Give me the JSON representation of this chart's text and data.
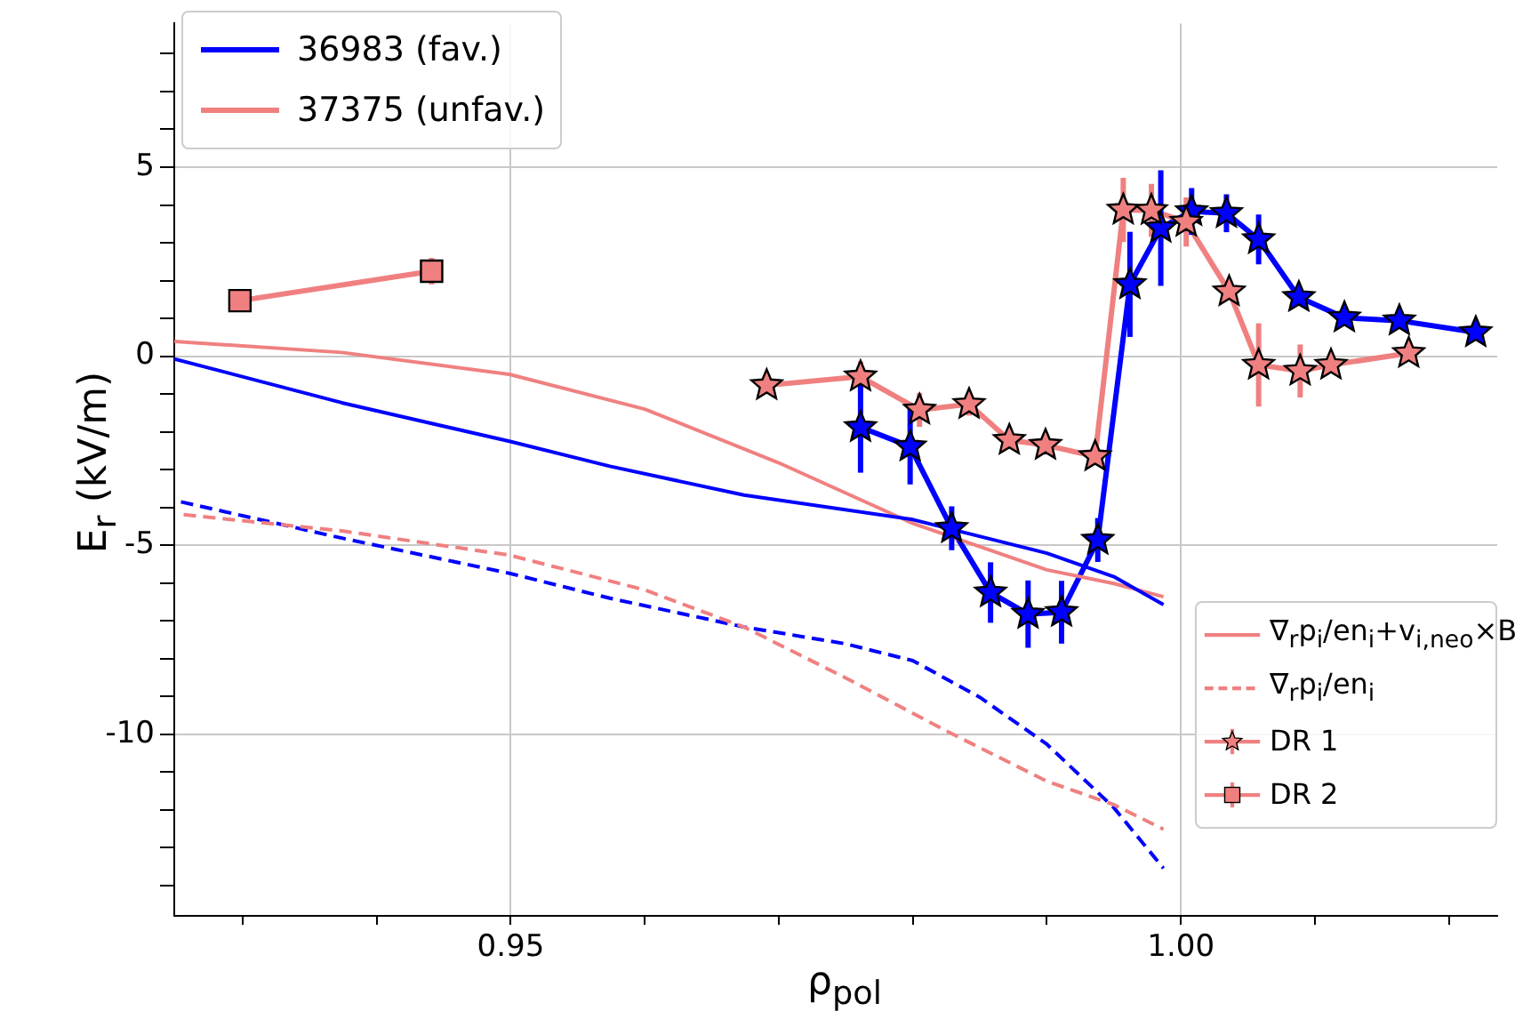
{
  "chart_data": {
    "type": "line",
    "xlabel": "ρ$_{pol}$",
    "ylabel": "E$_{r}$ (kV/m)",
    "xlim": [
      0.9249,
      1.0236
    ],
    "ylim": [
      -14.8,
      8.8
    ],
    "xticks": [
      {
        "value": 0.93,
        "label": null
      },
      {
        "value": 0.94,
        "label": null
      },
      {
        "value": 0.95,
        "label": "0.95"
      },
      {
        "value": 0.96,
        "label": null
      },
      {
        "value": 0.97,
        "label": null
      },
      {
        "value": 0.98,
        "label": null
      },
      {
        "value": 0.99,
        "label": null
      },
      {
        "value": 1.0,
        "label": "1.00"
      },
      {
        "value": 1.01,
        "label": null
      },
      {
        "value": 1.02,
        "label": null
      }
    ],
    "yticks": [
      {
        "value": -14,
        "label": null
      },
      {
        "value": -13,
        "label": null
      },
      {
        "value": -12,
        "label": null
      },
      {
        "value": -11,
        "label": null
      },
      -10,
      {
        "value": -9,
        "label": null
      },
      {
        "value": -8,
        "label": null
      },
      {
        "value": -7,
        "label": null
      },
      {
        "value": -6,
        "label": null
      },
      -5,
      {
        "value": -4,
        "label": null
      },
      {
        "value": -3,
        "label": null
      },
      {
        "value": -2,
        "label": null
      },
      {
        "value": -1,
        "label": null
      },
      0,
      {
        "value": 1,
        "label": null
      },
      {
        "value": 2,
        "label": null
      },
      {
        "value": 3,
        "label": null
      },
      {
        "value": 4,
        "label": null
      },
      5,
      {
        "value": 6,
        "label": null
      },
      {
        "value": 7,
        "label": null
      },
      {
        "value": 8,
        "label": null
      }
    ],
    "grid": true,
    "legend": "top left",
    "annotations": [
      "37375 (unfav.)"
    ],
    "series": [
      {
        "name": "36983 (fav.)",
        "color": "#0000ff",
        "marker": "none",
        "line_style": "solid",
        "x": [
          0.9249,
          0.9374,
          0.9499,
          0.9574,
          0.9674,
          0.98,
          0.99,
          0.995,
          0.9987
        ],
        "values": [
          -0.07,
          -1.23,
          -2.25,
          -2.91,
          -3.67,
          -4.32,
          -5.21,
          -5.83,
          -6.57
        ]
      },
      {
        "name": "∇$_{r}$p$_{i}$/en$_{i}$+v$_{i,neo}$×B",
        "color": "#f08080",
        "marker": "none",
        "line_style": "solid",
        "x": [
          0.9249,
          0.9374,
          0.9499,
          0.96,
          0.97,
          0.98,
          0.99,
          0.995,
          0.9987
        ],
        "values": [
          0.39,
          0.1,
          -0.48,
          -1.4,
          -2.82,
          -4.42,
          -5.65,
          -6.01,
          -6.36
        ]
      },
      {
        "name": "∇$_{r}$p$_{i}$/en$_{i}$",
        "color": "#f08080",
        "marker": "none",
        "line_style": "dashed",
        "x": [
          0.9256,
          0.9374,
          0.9499,
          0.96,
          0.9674,
          0.9749,
          0.9825,
          0.99,
          0.995,
          0.9987
        ],
        "values": [
          -4.19,
          -4.62,
          -5.26,
          -6.18,
          -7.16,
          -8.49,
          -9.91,
          -11.24,
          -11.86,
          -12.51
        ]
      },
      {
        "color": "#0000ff",
        "marker": "none",
        "line_style": "dashed",
        "x": [
          0.9254,
          0.9374,
          0.9499,
          0.9574,
          0.9674,
          0.9749,
          0.98,
          0.985,
          0.99,
          0.995,
          0.9987
        ],
        "values": [
          -3.85,
          -4.81,
          -5.74,
          -6.4,
          -7.16,
          -7.6,
          -8.05,
          -9.02,
          -10.26,
          -11.94,
          -13.54
        ]
      },
      {
        "name": "DR 1",
        "color": "#f08080",
        "marker": "star",
        "line_style": "solid",
        "x": [
          0.9691,
          0.9761,
          0.9805,
          0.9842,
          0.9872,
          0.9899,
          0.9936,
          0.9957,
          0.9978,
          1.0004,
          1.0036,
          1.0058,
          1.0089,
          1.0112,
          1.017
        ],
        "values": [
          -0.77,
          -0.54,
          -1.42,
          -1.27,
          -2.22,
          -2.35,
          -2.65,
          3.87,
          3.86,
          3.55,
          1.71,
          -0.23,
          -0.39,
          -0.23,
          0.08
        ],
        "errors": [
          0.15,
          0.4,
          0.45,
          0.3,
          0.2,
          0.15,
          0.2,
          0.85,
          0.7,
          0.65,
          0.2,
          1.1,
          0.7,
          0.15,
          0.15
        ]
      },
      {
        "name": "DR 2",
        "color": "#f08080",
        "marker": "square",
        "line_style": "solid",
        "x": [
          0.9298,
          0.9441
        ],
        "values": [
          1.47,
          2.25
        ],
        "errors": [
          0.15,
          0.35
        ]
      },
      {
        "color": "#0000ff",
        "marker": "star",
        "line_style": "solid",
        "x": [
          0.9761,
          0.9798,
          0.9829,
          0.9858,
          0.9886,
          0.9911,
          0.9938,
          0.9962,
          0.9985,
          1.0008,
          1.0034,
          1.0058,
          1.0088,
          1.0122,
          1.0163,
          1.022
        ],
        "values": [
          -1.88,
          -2.39,
          -4.55,
          -6.25,
          -6.82,
          -6.77,
          -4.86,
          1.9,
          3.39,
          3.83,
          3.78,
          3.09,
          1.56,
          1.02,
          0.94,
          0.63
        ],
        "errors": [
          1.2,
          1.0,
          0.58,
          0.8,
          0.89,
          0.83,
          0.58,
          1.39,
          1.53,
          0.62,
          0.5,
          0.66,
          0.2,
          0.1,
          0.1,
          0.1
        ]
      }
    ]
  }
}
